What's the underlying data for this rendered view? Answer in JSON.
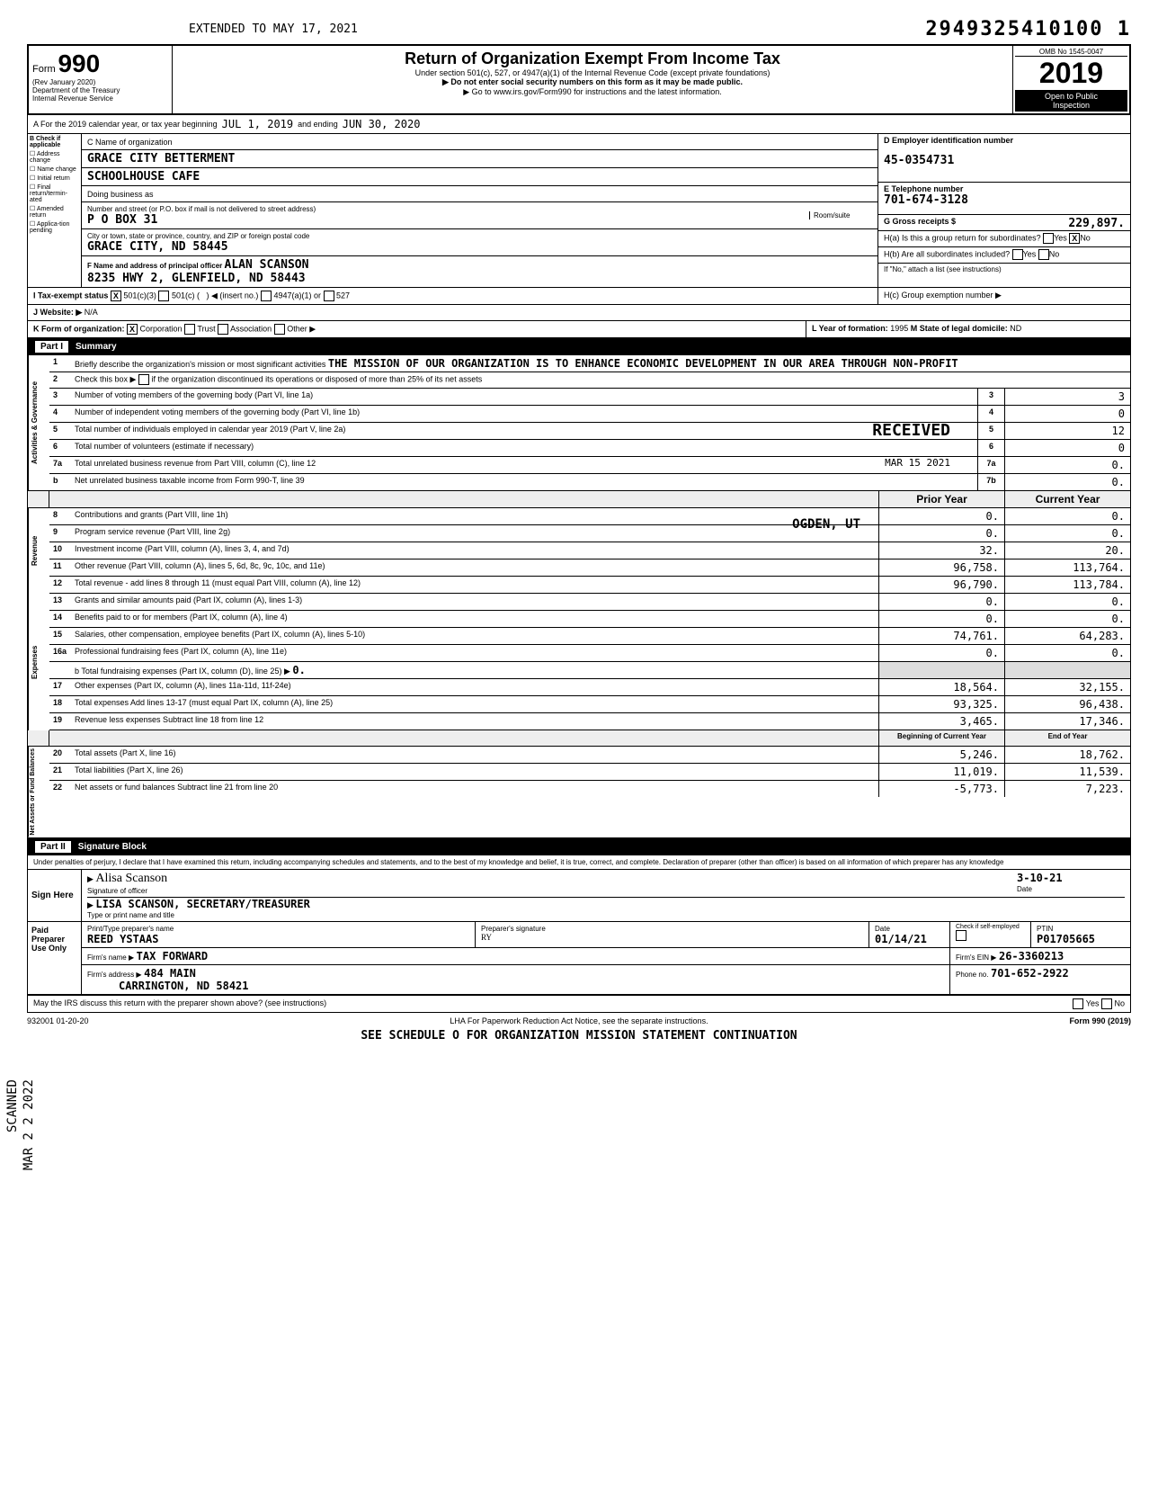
{
  "extended": "EXTENDED TO MAY 17, 2021",
  "dln": "2949325410100 1",
  "omb": "OMB No 1545-0047",
  "form_label": "Form",
  "form_num": "990",
  "rev": "(Rev January 2020)",
  "dept": "Department of the Treasury",
  "irs": "Internal Revenue Service",
  "title": "Return of Organization Exempt From Income Tax",
  "subtitle": "Under section 501(c), 527, or 4947(a)(1) of the Internal Revenue Code (except private foundations)",
  "warn1": "▶ Do not enter social security numbers on this form as it may be made public.",
  "warn2": "▶ Go to www.irs.gov/Form990 for instructions and the latest information.",
  "year": "2019",
  "open": "Open to Public",
  "insp": "Inspection",
  "row_a_label": "A For the 2019 calendar year, or tax year beginning",
  "row_a_begin": "JUL 1, 2019",
  "row_a_end_label": "and ending",
  "row_a_end": "JUN 30, 2020",
  "b_label": "B Check if applicable",
  "b_opts": [
    "Address change",
    "Name change",
    "Initial return",
    "Final return/termin-ated",
    "Amended return",
    "Applica-tion pending"
  ],
  "c_label": "C Name of organization",
  "c_name1": "GRACE CITY BETTERMENT",
  "c_name2": "SCHOOLHOUSE CAFE",
  "dba_label": "Doing business as",
  "street_label": "Number and street (or P.O. box if mail is not delivered to street address)",
  "street": "P O BOX 31",
  "room_label": "Room/suite",
  "city_label": "City or town, state or province, country, and ZIP or foreign postal code",
  "city": "GRACE CITY, ND  58445",
  "f_label": "F Name and address of principal officer",
  "f_name": "ALAN SCANSON",
  "f_addr": "8235 HWY 2, GLENFIELD, ND  58443",
  "d_label": "D Employer identification number",
  "d_ein": "45-0354731",
  "e_label": "E Telephone number",
  "e_phone": "701-674-3128",
  "g_label": "G Gross receipts $",
  "g_val": "229,897.",
  "ha_label": "H(a) Is this a group return for subordinates?",
  "ha_yes": "Yes",
  "ha_no": "No",
  "hb_label": "H(b) Are all subordinates included?",
  "hb_note": "If \"No,\" attach a list (see instructions)",
  "hc_label": "H(c) Group exemption number ▶",
  "i_label": "I Tax-exempt status",
  "i_501c3": "501(c)(3)",
  "i_501c": "501(c) (",
  "i_insert": ") ◀ (insert no.)",
  "i_4947": "4947(a)(1) or",
  "i_527": "527",
  "j_label": "J Website: ▶",
  "j_val": "N/A",
  "k_label": "K Form of organization:",
  "k_corp": "Corporation",
  "k_trust": "Trust",
  "k_assoc": "Association",
  "k_other": "Other ▶",
  "l_label": "L Year of formation:",
  "l_val": "1995",
  "m_label": "M State of legal domicile:",
  "m_val": "ND",
  "part1": "Part I",
  "part1_title": "Summary",
  "line1_label": "Briefly describe the organization's mission or most significant activities",
  "line1_val": "THE MISSION OF OUR ORGANIZATION IS TO ENHANCE ECONOMIC DEVELOPMENT IN OUR AREA THROUGH NON-PROFIT",
  "line2_label": "Check this box ▶",
  "line2_suffix": "if the organization discontinued its operations or disposed of more than 25% of its net assets",
  "line3_label": "Number of voting members of the governing body (Part VI, line 1a)",
  "line3_val": "3",
  "line4_label": "Number of independent voting members of the governing body (Part VI, line 1b)",
  "line4_val": "0",
  "line5_label": "Total number of individuals employed in calendar year 2019 (Part V, line 2a)",
  "line5_val": "12",
  "line6_label": "Total number of volunteers (estimate if necessary)",
  "line6_val": "0",
  "line7a_label": "Total unrelated business revenue from Part VIII, column (C), line 12",
  "line7a_val": "0.",
  "line7b_label": "Net unrelated business taxable income from Form 990-T, line 39",
  "line7b_val": "0.",
  "received_stamp": "RECEIVED",
  "received_date": "MAR 15 2021",
  "received_loc": "OGDEN, UT",
  "prior_hdr": "Prior Year",
  "current_hdr": "Current Year",
  "side_ag": "Activities & Governance",
  "side_rev": "Revenue",
  "side_exp": "Expenses",
  "side_nab": "Net Assets or Fund Balances",
  "rev_rows": [
    {
      "n": "8",
      "label": "Contributions and grants (Part VIII, line 1h)",
      "prior": "0.",
      "curr": "0."
    },
    {
      "n": "9",
      "label": "Program service revenue (Part VIII, line 2g)",
      "prior": "0.",
      "curr": "0."
    },
    {
      "n": "10",
      "label": "Investment income (Part VIII, column (A), lines 3, 4, and 7d)",
      "prior": "32.",
      "curr": "20."
    },
    {
      "n": "11",
      "label": "Other revenue (Part VIII, column (A), lines 5, 6d, 8c, 9c, 10c, and 11e)",
      "prior": "96,758.",
      "curr": "113,764."
    },
    {
      "n": "12",
      "label": "Total revenue - add lines 8 through 11 (must equal Part VIII, column (A), line 12)",
      "prior": "96,790.",
      "curr": "113,784."
    }
  ],
  "exp_rows": [
    {
      "n": "13",
      "label": "Grants and similar amounts paid (Part IX, column (A), lines 1-3)",
      "prior": "0.",
      "curr": "0."
    },
    {
      "n": "14",
      "label": "Benefits paid to or for members (Part IX, column (A), line 4)",
      "prior": "0.",
      "curr": "0."
    },
    {
      "n": "15",
      "label": "Salaries, other compensation, employee benefits (Part IX, column (A), lines 5-10)",
      "prior": "74,761.",
      "curr": "64,283."
    },
    {
      "n": "16a",
      "label": "Professional fundraising fees (Part IX, column (A), line 11e)",
      "prior": "0.",
      "curr": "0."
    }
  ],
  "line16b_label": "b Total fundraising expenses (Part IX, column (D), line 25) ▶",
  "line16b_val": "0.",
  "exp_rows2": [
    {
      "n": "17",
      "label": "Other expenses (Part IX, column (A), lines 11a-11d, 11f-24e)",
      "prior": "18,564.",
      "curr": "32,155."
    },
    {
      "n": "18",
      "label": "Total expenses Add lines 13-17 (must equal Part IX, column (A), line 25)",
      "prior": "93,325.",
      "curr": "96,438."
    },
    {
      "n": "19",
      "label": "Revenue less expenses Subtract line 18 from line 12",
      "prior": "3,465.",
      "curr": "17,346."
    }
  ],
  "boy_hdr": "Beginning of Current Year",
  "eoy_hdr": "End of Year",
  "nab_rows": [
    {
      "n": "20",
      "label": "Total assets (Part X, line 16)",
      "prior": "5,246.",
      "curr": "18,762."
    },
    {
      "n": "21",
      "label": "Total liabilities (Part X, line 26)",
      "prior": "11,019.",
      "curr": "11,539."
    },
    {
      "n": "22",
      "label": "Net assets or fund balances Subtract line 21 from line 20",
      "prior": "-5,773.",
      "curr": "7,223."
    }
  ],
  "part2": "Part II",
  "part2_title": "Signature Block",
  "perjury": "Under penalties of perjury, I declare that I have examined this return, including accompanying schedules and statements, and to the best of my knowledge and belief, it is true, correct, and complete. Declaration of preparer (other than officer) is based on all information of which preparer has any knowledge",
  "sign_here": "Sign Here",
  "sig_officer": "Signature of officer",
  "sig_date": "Date",
  "sig_date_val": "3-10-21",
  "sig_name": "LISA SCANSON, SECRETARY/TREASURER",
  "sig_name_label": "Type or print name and title",
  "paid_label": "Paid Preparer Use Only",
  "prep_name_label": "Print/Type preparer's name",
  "prep_name": "REED YSTAAS",
  "prep_sig_label": "Preparer's signature",
  "prep_date_label": "Date",
  "prep_date": "01/14/21",
  "prep_check": "Check if self-employed",
  "ptin_label": "PTIN",
  "ptin": "P01705665",
  "firm_name_label": "Firm's name ▶",
  "firm_name": "TAX FORWARD",
  "firm_ein_label": "Firm's EIN ▶",
  "firm_ein": "26-3360213",
  "firm_addr_label": "Firm's address ▶",
  "firm_addr1": "484 MAIN",
  "firm_addr2": "CARRINGTON, ND 58421",
  "firm_phone_label": "Phone no.",
  "firm_phone": "701-652-2922",
  "discuss": "May the IRS discuss this return with the preparer shown above? (see instructions)",
  "discuss_yes": "Yes",
  "discuss_no": "No",
  "lha": "LHA For Paperwork Reduction Act Notice, see the separate instructions.",
  "form_foot": "Form 990 (2019)",
  "foot_code": "932001 01-20-20",
  "see": "SEE SCHEDULE O FOR ORGANIZATION MISSION STATEMENT CONTINUATION",
  "scanned": "SCANNED",
  "mar": "MAR 2 2 2022"
}
